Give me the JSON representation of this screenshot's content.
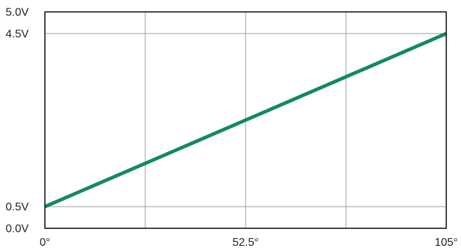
{
  "chart_data": {
    "type": "line",
    "title": "",
    "xlabel": "",
    "ylabel": "",
    "xlim": [
      0,
      105
    ],
    "ylim": [
      0,
      5.0
    ],
    "x_ticks": [
      {
        "value": 0,
        "label": "0°"
      },
      {
        "value": 52.5,
        "label": "52.5°"
      },
      {
        "value": 105,
        "label": "105°"
      }
    ],
    "y_ticks": [
      {
        "value": 0,
        "label": "0.0V"
      },
      {
        "value": 0.5,
        "label": "0.5V"
      },
      {
        "value": 4.5,
        "label": "4.5V"
      },
      {
        "value": 5.0,
        "label": "5.0V"
      }
    ],
    "x_gridlines": [
      26.25,
      52.5,
      78.75
    ],
    "y_gridlines": [
      0.5,
      4.5
    ],
    "grid": true,
    "legend": "none",
    "series": [
      {
        "x": [
          0,
          105
        ],
        "values": [
          0.5,
          4.5
        ],
        "color": "#138a5a"
      }
    ],
    "colors": {
      "line": "#138a5a",
      "grid": "#9a9a9a",
      "frame": "#111111"
    }
  }
}
